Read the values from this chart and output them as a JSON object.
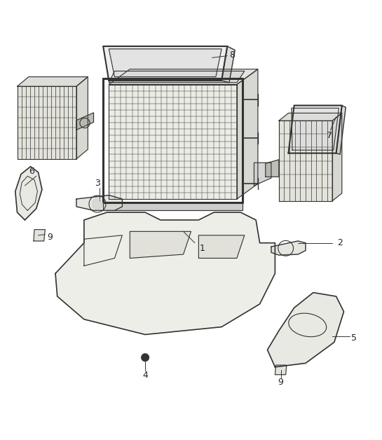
{
  "title": "",
  "background_color": "#ffffff",
  "figure_width": 5.45,
  "figure_height": 6.28,
  "dpi": 100,
  "line_color": "#333333",
  "line_width": 0.8,
  "font_size": 9,
  "font_color": "#222222"
}
